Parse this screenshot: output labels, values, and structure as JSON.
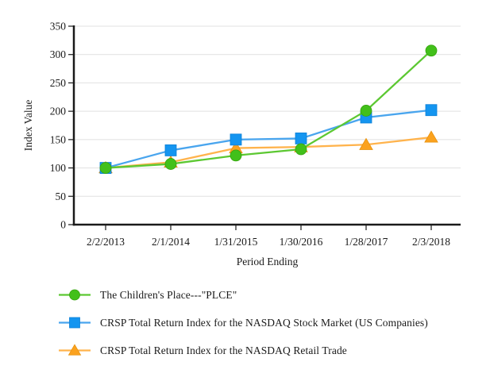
{
  "chart_data": {
    "type": "line",
    "title": "",
    "xlabel": "Period Ending",
    "ylabel": "Index Value",
    "categories": [
      "2/2/2013",
      "2/1/2014",
      "1/31/2015",
      "1/30/2016",
      "1/28/2017",
      "2/3/2018"
    ],
    "ylim": [
      0,
      350
    ],
    "yticks": [
      0,
      50,
      100,
      150,
      200,
      250,
      300,
      350
    ],
    "grid": true,
    "legend_position": "bottom-left",
    "colors": {
      "axis": "#1a1a1a",
      "gridline": "#e1e1e1",
      "text": "#1a1a1a"
    },
    "series": [
      {
        "name": "The Children's Place---\"PLCE\"",
        "marker": "circle",
        "line_color": "#5cc832",
        "marker_color": "#42c01a",
        "marker_edge": "#35a30e",
        "values": [
          100,
          107,
          122,
          133,
          201,
          307
        ]
      },
      {
        "name": "CRSP Total Return Index for the NASDAQ Stock Market (US Companies)",
        "marker": "square",
        "line_color": "#49a5ee",
        "marker_color": "#1495f0",
        "marker_edge": "#0c7fd6",
        "values": [
          100,
          131,
          150,
          152,
          189,
          202
        ]
      },
      {
        "name": "CRSP Total Return Index for the NASDAQ Retail Trade",
        "marker": "triangle",
        "line_color": "#ffb34c",
        "marker_color": "#fba21e",
        "marker_edge": "#e8920d",
        "values": [
          100,
          110,
          135,
          137,
          141,
          154
        ]
      }
    ]
  }
}
